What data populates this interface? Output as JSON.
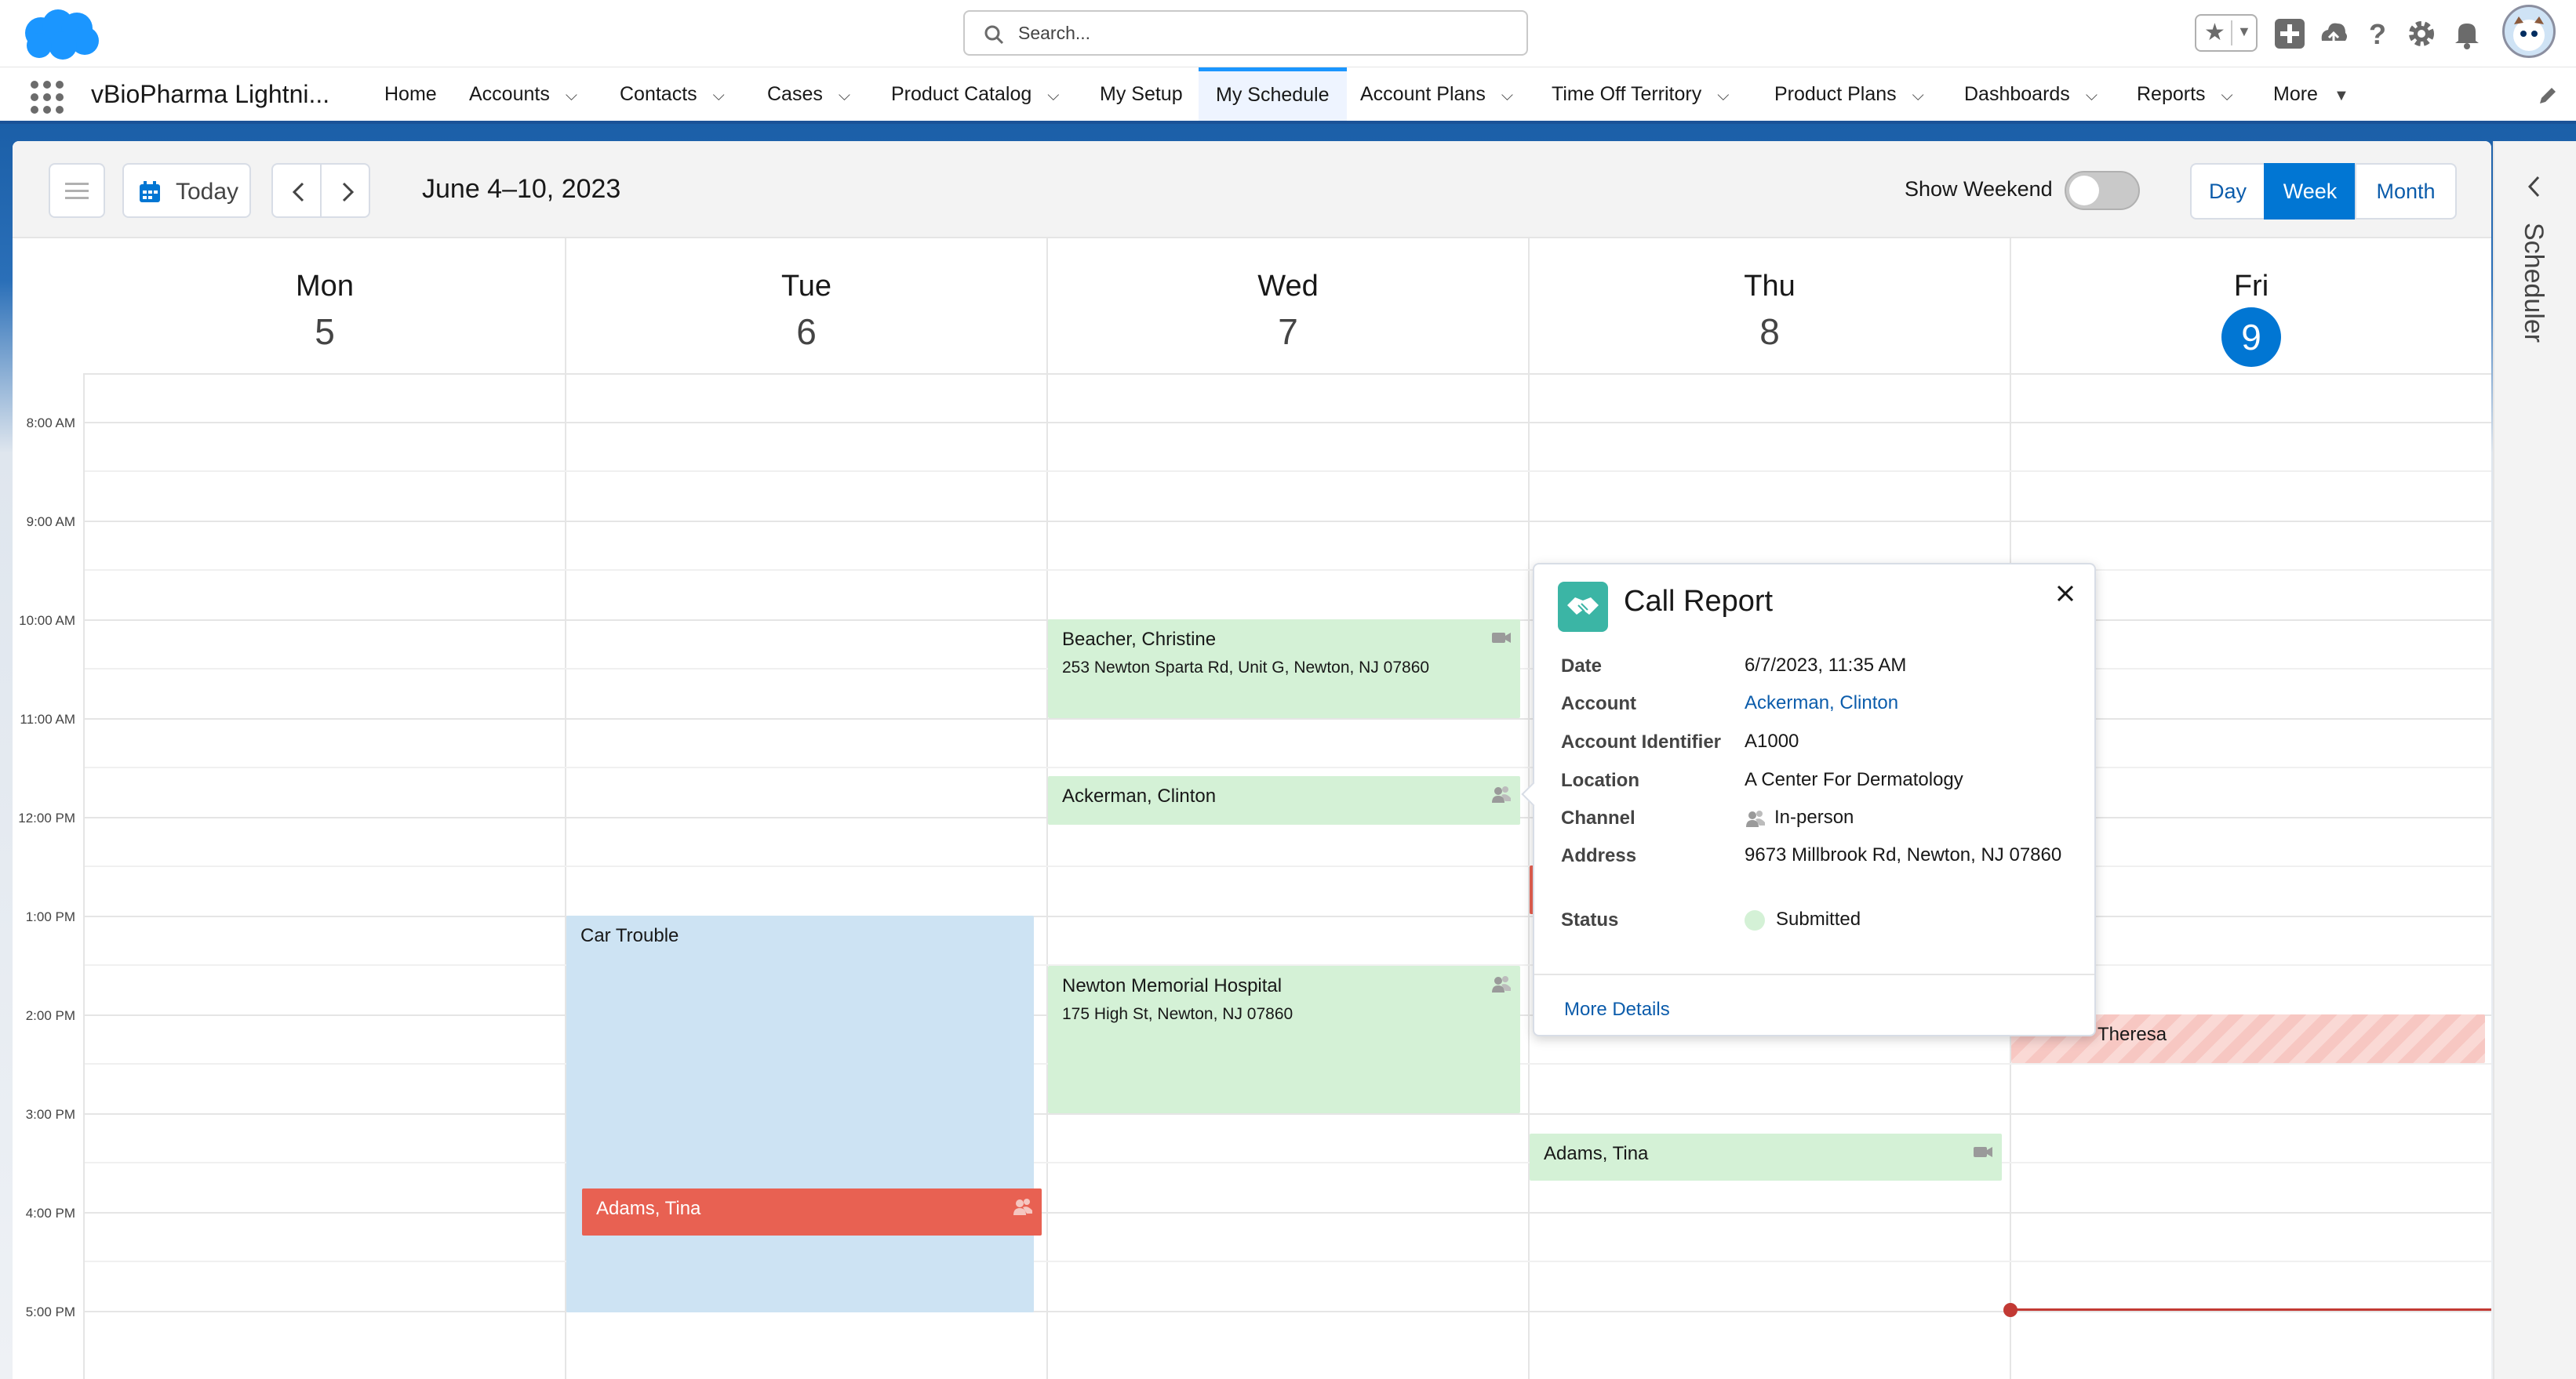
{
  "header": {
    "search_placeholder": "Search..."
  },
  "nav": {
    "app_name": "vBioPharma Lightni...",
    "items": [
      {
        "label": "Home"
      },
      {
        "label": "Accounts"
      },
      {
        "label": "Contacts"
      },
      {
        "label": "Cases"
      },
      {
        "label": "Product Catalog"
      },
      {
        "label": "My Setup"
      },
      {
        "label": "My Schedule"
      },
      {
        "label": "Account Plans"
      },
      {
        "label": "Time Off Territory"
      },
      {
        "label": "Product Plans"
      },
      {
        "label": "Dashboards"
      },
      {
        "label": "Reports"
      },
      {
        "label": "More"
      }
    ],
    "active": "My Schedule"
  },
  "toolbar": {
    "today_label": "Today",
    "date_range": "June 4–10, 2023",
    "show_weekend_label": "Show Weekend",
    "show_weekend_on": false,
    "views": {
      "day": "Day",
      "week": "Week",
      "month": "Month"
    },
    "active_view": "Week"
  },
  "days": [
    {
      "name": "Mon",
      "num": "5"
    },
    {
      "name": "Tue",
      "num": "6"
    },
    {
      "name": "Wed",
      "num": "7"
    },
    {
      "name": "Thu",
      "num": "8"
    },
    {
      "name": "Fri",
      "num": "9",
      "today": true
    }
  ],
  "times": [
    "8:00 AM",
    "9:00 AM",
    "10:00 AM",
    "11:00 AM",
    "12:00 PM",
    "1:00 PM",
    "2:00 PM",
    "3:00 PM",
    "4:00 PM",
    "5:00 PM"
  ],
  "events": {
    "beacher": {
      "title": "Beacher, Christine",
      "address": "253 Newton Sparta Rd, Unit G, Newton, NJ 07860",
      "icon": "video-icon"
    },
    "ackerman": {
      "title": "Ackerman, Clinton",
      "icon": "in-person-icon"
    },
    "car_trouble": {
      "title": "Car Trouble"
    },
    "adams_tue": {
      "title": "Adams, Tina",
      "icon": "in-person-icon"
    },
    "newton": {
      "title": "Newton Memorial Hospital",
      "address": "175 High St, Newton, NJ 07860",
      "icon": "in-person-icon"
    },
    "adams_thu": {
      "title": "Adams, Tina",
      "icon": "video-icon"
    },
    "theresa": {
      "title": "Theresa"
    }
  },
  "popover": {
    "title": "Call Report",
    "fields": {
      "date_label": "Date",
      "date_value": "6/7/2023, 11:35 AM",
      "account_label": "Account",
      "account_value": "Ackerman, Clinton",
      "account_id_label": "Account Identifier",
      "account_id_value": "A1000",
      "location_label": "Location",
      "location_value": "A Center For Dermatology",
      "channel_label": "Channel",
      "channel_value": "In-person",
      "address_label": "Address",
      "address_value": "9673 Millbrook Rd, Newton, NJ 07860",
      "status_label": "Status",
      "status_value": "Submitted"
    },
    "more_details": "More Details"
  },
  "side_panel": {
    "label": "Scheduler"
  },
  "colors": {
    "brand_blue": "#0176d3",
    "event_green": "#d4f1d6",
    "event_blue": "#cde3f3",
    "event_red": "#e86152",
    "now_line": "#c23934"
  }
}
